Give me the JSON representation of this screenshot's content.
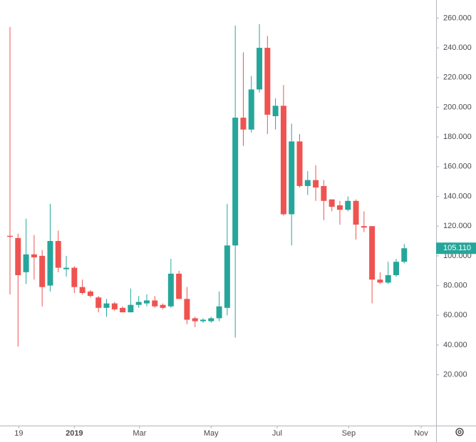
{
  "chart_data": {
    "type": "candlestick",
    "categories": [
      null,
      null,
      null,
      null,
      null,
      null,
      null,
      null,
      null,
      null,
      null,
      null,
      null,
      null,
      null,
      null,
      null,
      null,
      null,
      null,
      null,
      null,
      null,
      null,
      null,
      null,
      null,
      null,
      null,
      null,
      null,
      null,
      null,
      null,
      null,
      null,
      null,
      null,
      null,
      null,
      null,
      null,
      null,
      null,
      null,
      null,
      null,
      null,
      null,
      null
    ],
    "open": [
      113.5,
      112,
      89,
      101,
      100,
      80,
      110,
      91,
      92,
      79,
      76,
      72,
      65,
      68,
      65,
      62,
      67,
      68,
      70,
      67,
      66,
      88,
      71,
      58,
      56,
      56,
      58,
      65,
      107,
      193,
      185,
      212,
      240,
      194,
      201,
      128,
      177,
      147,
      151,
      147,
      138,
      134,
      131,
      137,
      120,
      120,
      84,
      82,
      87,
      96
    ],
    "high": [
      254,
      115,
      125,
      114,
      104,
      135,
      117,
      100,
      93,
      84,
      77,
      73,
      71,
      69,
      66,
      78,
      73,
      74,
      73,
      68,
      98,
      90,
      79,
      59,
      58,
      59,
      76,
      135,
      255,
      237,
      221,
      256,
      248,
      206,
      215,
      189,
      182,
      157,
      161,
      151,
      138,
      137,
      140,
      138,
      130,
      120,
      89,
      96,
      98,
      108
    ],
    "low": [
      74,
      39,
      81,
      84,
      66,
      76,
      89,
      86,
      75,
      74,
      72,
      62,
      59,
      63,
      62,
      62,
      65,
      66,
      65,
      64,
      65,
      71,
      54,
      52,
      55,
      55,
      56,
      60,
      45,
      174,
      183,
      210,
      182,
      185,
      127,
      107,
      146,
      141,
      137,
      124,
      130,
      121,
      130,
      111,
      116,
      68,
      81,
      81,
      86,
      95
    ],
    "close": [
      112.8,
      87,
      101,
      99,
      79,
      110,
      92,
      92,
      79,
      75,
      73,
      65,
      68,
      64,
      62,
      67,
      69,
      70,
      66,
      65,
      88,
      71,
      57,
      56,
      57,
      58,
      66,
      107,
      193,
      185,
      212,
      240,
      195,
      201,
      128,
      177,
      147,
      151,
      146,
      137,
      133,
      131,
      137,
      121,
      119,
      84,
      82,
      87,
      96,
      105.11
    ],
    "up_color": "#26a69a",
    "down_color": "#ef5350",
    "ylim": [
      -14.25,
      272.2
    ],
    "yticks": [
      {
        "value": 20,
        "label": "20.000"
      },
      {
        "value": 40,
        "label": "40.000"
      },
      {
        "value": 60,
        "label": "60.000"
      },
      {
        "value": 80,
        "label": "80.000"
      },
      {
        "value": 100,
        "label": "100.000"
      },
      {
        "value": 120,
        "label": "120.000"
      },
      {
        "value": 140,
        "label": "140.000"
      },
      {
        "value": 160,
        "label": "160.000"
      },
      {
        "value": 180,
        "label": "180.000"
      },
      {
        "value": 200,
        "label": "200.000"
      },
      {
        "value": 220,
        "label": "220.000"
      },
      {
        "value": 240,
        "label": "240.000"
      },
      {
        "value": 260,
        "label": "260.000"
      }
    ],
    "xlim": [
      -1.24,
      52.96
    ],
    "xticks": [
      {
        "value": 1.1,
        "label": "19"
      },
      {
        "value": 8,
        "label": "2019"
      },
      {
        "value": 16.1,
        "label": "Mar"
      },
      {
        "value": 25,
        "label": "May"
      },
      {
        "value": 33.2,
        "label": "Jul"
      },
      {
        "value": 42.1,
        "label": "Sep"
      },
      {
        "value": 51.1,
        "label": "Nov"
      }
    ],
    "last_price": {
      "value": 105.11,
      "label": "105.110"
    },
    "grid": false
  }
}
